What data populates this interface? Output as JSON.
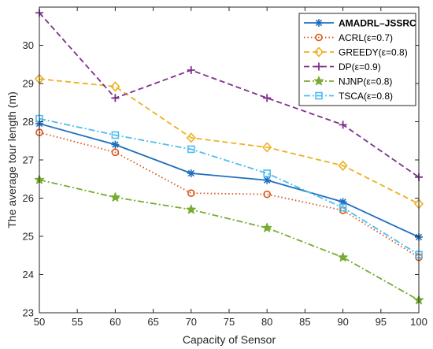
{
  "chart_data": {
    "type": "line",
    "xlabel": "Capacity of Sensor",
    "ylabel": "The average tour length (m)",
    "x": [
      50,
      60,
      70,
      80,
      90,
      100
    ],
    "xlim": [
      50,
      100
    ],
    "ylim": [
      23,
      31
    ],
    "xticks": [
      50,
      55,
      60,
      65,
      70,
      75,
      80,
      85,
      90,
      95,
      100
    ],
    "yticks": [
      23,
      24,
      25,
      26,
      27,
      28,
      29,
      30
    ],
    "grid": false,
    "legend_position": "top-right",
    "series": [
      {
        "name": "AMADRL–JSSRC",
        "values": [
          27.95,
          27.4,
          26.65,
          26.47,
          25.9,
          24.98
        ],
        "color": "#1f6fbf",
        "dash": "solid",
        "marker": "asterisk"
      },
      {
        "name": "ACRL(ε=0.7)",
        "values": [
          27.72,
          27.2,
          26.13,
          26.1,
          25.68,
          24.45
        ],
        "color": "#d95319",
        "dash": "dotted",
        "marker": "circle"
      },
      {
        "name": "GREEDY(ε=0.8)",
        "values": [
          29.12,
          28.92,
          27.58,
          27.33,
          26.85,
          25.85
        ],
        "color": "#edb120",
        "dash": "dashed",
        "marker": "diamond"
      },
      {
        "name": "DP(ε=0.9)",
        "values": [
          30.85,
          28.62,
          29.35,
          28.62,
          27.92,
          26.55
        ],
        "color": "#7e2f8e",
        "dash": "dashed",
        "marker": "plus"
      },
      {
        "name": "NJNP(ε=0.8)",
        "values": [
          26.48,
          26.02,
          25.7,
          25.22,
          24.45,
          23.33
        ],
        "color": "#77ac30",
        "dash": "dashdot",
        "marker": "star"
      },
      {
        "name": "TSCA(ε=0.8)",
        "values": [
          28.08,
          27.65,
          27.28,
          26.65,
          25.75,
          24.52
        ],
        "color": "#4dbeee",
        "dash": "dashdot",
        "marker": "square"
      }
    ]
  }
}
